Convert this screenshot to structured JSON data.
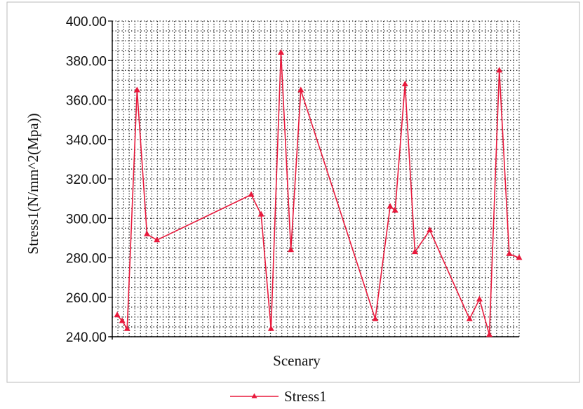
{
  "chart_data": {
    "type": "line",
    "title": "",
    "xlabel": "Scenary",
    "ylabel": "Stress1(N/mm^2(Mpa))",
    "ylim": [
      240,
      400
    ],
    "yticks": [
      "400.00",
      "380.00",
      "360.00",
      "340.00",
      "320.00",
      "300.00",
      "280.00",
      "260.00",
      "240.00"
    ],
    "grid": true,
    "legend": "bottom",
    "x": [
      1,
      2,
      3,
      5,
      7,
      9,
      28,
      30,
      32,
      34,
      36,
      38,
      53,
      56,
      57,
      59,
      61,
      64,
      72,
      74,
      76,
      78,
      80,
      82
    ],
    "series": [
      {
        "name": "Stress1",
        "color": "#e8193c",
        "marker": "triangle",
        "values": [
          251,
          248,
          244,
          365,
          292,
          289,
          312,
          302,
          244,
          384,
          284,
          365,
          249,
          306,
          304,
          368,
          283,
          294,
          249,
          259,
          241,
          375,
          282,
          280
        ]
      }
    ]
  }
}
